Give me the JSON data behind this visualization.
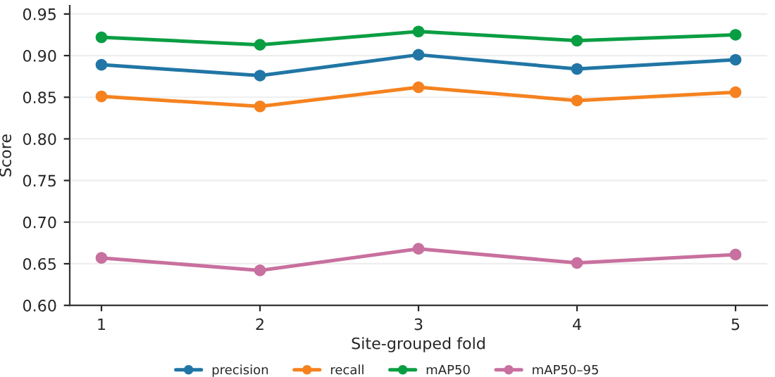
{
  "chart_data": {
    "type": "line",
    "xlabel": "Site-grouped fold",
    "ylabel": "Score",
    "x": [
      1,
      2,
      3,
      4,
      5
    ],
    "series": [
      {
        "name": "precision",
        "color": "#2176a5",
        "values": [
          0.889,
          0.876,
          0.901,
          0.884,
          0.895
        ]
      },
      {
        "name": "recall",
        "color": "#f5821f",
        "values": [
          0.851,
          0.839,
          0.862,
          0.846,
          0.856
        ]
      },
      {
        "name": "mAP50",
        "color": "#0a9e43",
        "values": [
          0.922,
          0.913,
          0.929,
          0.918,
          0.925
        ]
      },
      {
        "name": "mAP50–95",
        "color": "#c8709f",
        "values": [
          0.657,
          0.642,
          0.668,
          0.651,
          0.661
        ]
      }
    ],
    "xlim": [
      0.8,
      5.2
    ],
    "xticks": [
      1,
      2,
      3,
      4,
      5
    ],
    "ylim": [
      0.6,
      0.96
    ],
    "yticks": [
      {
        "value": 0.6,
        "label": "0.60"
      },
      {
        "value": 0.65,
        "label": "0.65"
      },
      {
        "value": 0.7,
        "label": "0.70"
      },
      {
        "value": 0.75,
        "label": "0.75"
      },
      {
        "value": 0.8,
        "label": "0.80"
      },
      {
        "value": 0.85,
        "label": "0.85"
      },
      {
        "value": 0.9,
        "label": "0.90"
      },
      {
        "value": 0.95,
        "label": "0.95"
      }
    ],
    "grid": "y",
    "legend": "bottom",
    "marker": "circle",
    "line_style": "solid"
  }
}
